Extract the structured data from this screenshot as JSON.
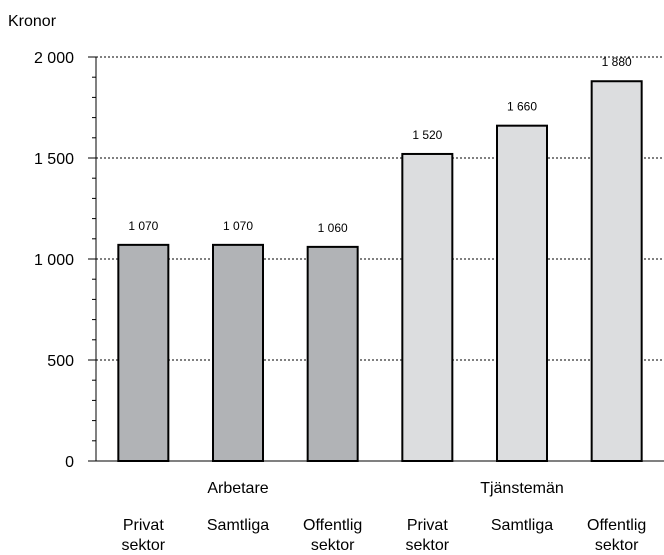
{
  "chart_data": {
    "type": "bar",
    "ylabel": "Kronor",
    "ylim": [
      0,
      2000
    ],
    "yticks": [
      "0",
      "500",
      "1 000",
      "1 500",
      "2 000"
    ],
    "yticks_values": [
      0,
      500,
      1000,
      1500,
      2000
    ],
    "grid": true,
    "categories": [
      {
        "line1": "Privat",
        "line2": "sektor"
      },
      {
        "line1": "Samtliga",
        "line2": ""
      },
      {
        "line1": "Offentlig",
        "line2": "sektor"
      },
      {
        "line1": "Privat",
        "line2": "sektor"
      },
      {
        "line1": "Samtliga",
        "line2": ""
      },
      {
        "line1": "Offentlig",
        "line2": "sektor"
      }
    ],
    "groups": [
      {
        "label": "Arbetare",
        "indices": [
          0,
          1,
          2
        ],
        "color": "#b1b3b6"
      },
      {
        "label": "Tjänstemän",
        "indices": [
          3,
          4,
          5
        ],
        "color": "#dcdddf"
      }
    ],
    "values": [
      1070,
      1070,
      1060,
      1520,
      1660,
      1880
    ],
    "data_labels": [
      "1 070",
      "1 070",
      "1 060",
      "1 520",
      "1 660",
      "1 880"
    ]
  }
}
